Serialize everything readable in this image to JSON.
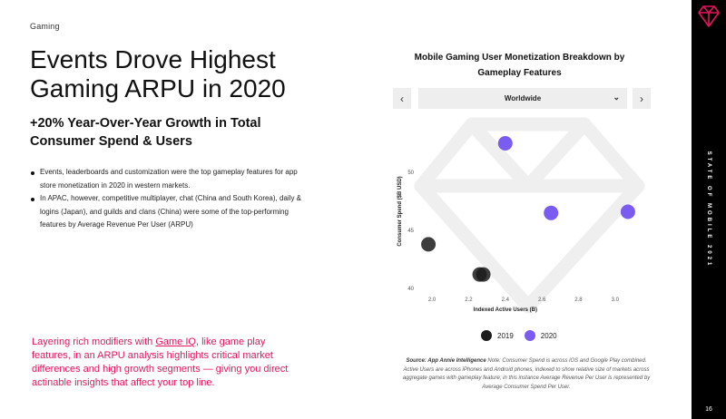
{
  "section": "Gaming",
  "headline": "Events Drove Highest Gaming ARPU in 2020",
  "subhead": "+20% Year-Over-Year Growth in Total Consumer Spend & Users",
  "bullets": [
    "Events, leaderboards and customization were the top gameplay features for app store monetization in 2020 in western markets.",
    "In APAC, however, competitive multiplayer, chat (China and South Korea), daily & logins (Japan), and guilds and clans (China) were some of the top-performing features by Average Revenue Per User (ARPU)"
  ],
  "callout": {
    "before": "Layering rich modifiers with ",
    "link": "Game IQ",
    "after": ", like game play features, in an ARPU analysis highlights critical market differences and high growth segments — giving you direct actinable insights that affect your top line."
  },
  "controls": {
    "prev_icon": "chevron-left-icon",
    "next_icon": "chevron-right-icon",
    "prev_glyph": "‹",
    "next_glyph": "›",
    "region": "Worldwide",
    "region_chevron": "⌄"
  },
  "chart_data": {
    "type": "scatter",
    "title": "Mobile Gaming User Monetization Breakdown by Gameplay Features",
    "xlabel": "Indexed Active Users (B)",
    "ylabel": "Consumer Spend ($B USD)",
    "xlim": [
      1.94,
      3.12
    ],
    "ylim": [
      40,
      50
    ],
    "x_ticks": [
      2.0,
      2.2,
      2.4,
      2.6,
      2.8,
      3.0
    ],
    "x_tick_labels": [
      "2.0",
      "2.2",
      "2.4",
      "2.6",
      "2.8",
      "3.0"
    ],
    "y_ticks": [
      40,
      45,
      50
    ],
    "y_tick_labels": [
      "40",
      "45",
      "50"
    ],
    "grid": false,
    "legend_position": "bottom-center",
    "series": [
      {
        "name": "2019",
        "color": "#1c1c1c",
        "points": [
          [
            1.98,
            43.8
          ],
          [
            2.26,
            41.2
          ],
          [
            2.28,
            41.2
          ]
        ]
      },
      {
        "name": "2020",
        "color": "#7b5cf2",
        "points": [
          [
            2.4,
            52.5
          ],
          [
            2.65,
            46.5
          ],
          [
            3.07,
            46.6
          ]
        ]
      }
    ]
  },
  "source": {
    "bold": "Source: App Annie Intelligence",
    "text": " Note: Consumer Spend is across iOS and Google Play combined. Active Users are across iPhones and Android phones, indexed to show relative size of markets across aggregate games with gameplay feature; in this instance Average Revenue Per User is represented by Average Consumer Spend Per User."
  },
  "sidebar": {
    "vertical_text": "STATE OF MOBILE 2021",
    "page_number": "16"
  }
}
